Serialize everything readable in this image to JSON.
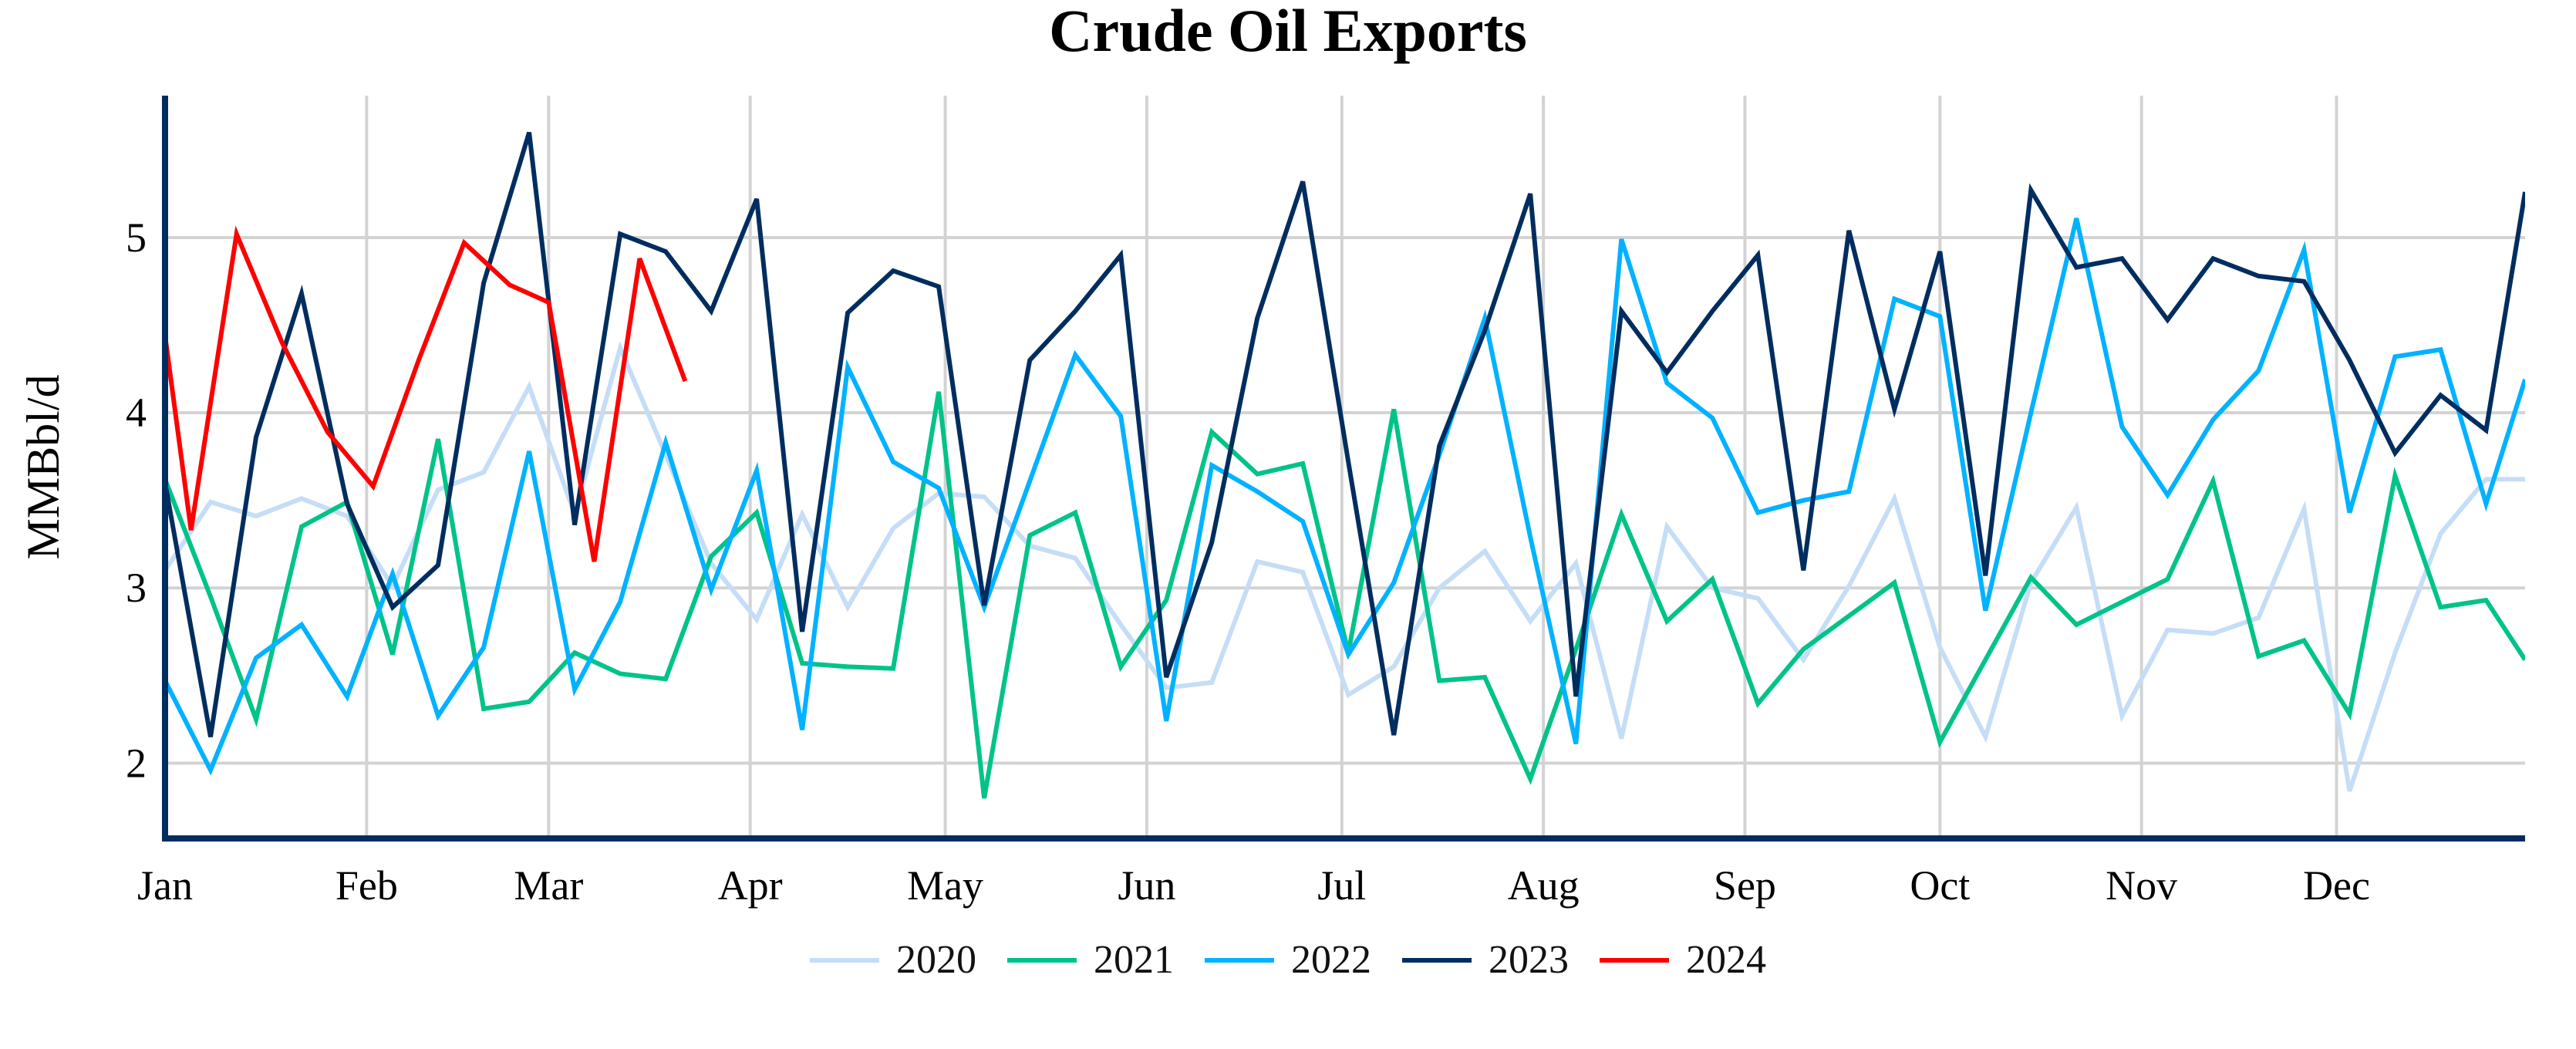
{
  "chart_data": {
    "type": "line",
    "title": "Crude Oil Exports",
    "xlabel": "",
    "ylabel": "MMBbl/d",
    "ylim": [
      1.57,
      5.81
    ],
    "xlim": [
      "01-01",
      "12-30"
    ],
    "yticks": [
      2,
      3,
      4,
      5
    ],
    "xticks": [
      {
        "label": "Jan",
        "date": "01-01"
      },
      {
        "label": "Feb",
        "date": "02-01"
      },
      {
        "label": "Mar",
        "date": "03-01"
      },
      {
        "label": "Apr",
        "date": "04-01"
      },
      {
        "label": "May",
        "date": "05-01"
      },
      {
        "label": "Jun",
        "date": "06-01"
      },
      {
        "label": "Jul",
        "date": "07-01"
      },
      {
        "label": "Aug",
        "date": "08-01"
      },
      {
        "label": "Sep",
        "date": "09-01"
      },
      {
        "label": "Oct",
        "date": "10-01"
      },
      {
        "label": "Nov",
        "date": "11-01"
      },
      {
        "label": "Dec",
        "date": "12-01"
      }
    ],
    "grid": true,
    "legend_position": "bottom",
    "x": [
      "01-01",
      "01-08",
      "01-15",
      "01-22",
      "01-29",
      "02-05",
      "02-12",
      "02-19",
      "02-26",
      "03-05",
      "03-12",
      "03-19",
      "03-26",
      "04-02",
      "04-09",
      "04-16",
      "04-23",
      "04-30",
      "05-07",
      "05-14",
      "05-21",
      "05-28",
      "06-04",
      "06-11",
      "06-18",
      "06-25",
      "07-02",
      "07-09",
      "07-16",
      "07-23",
      "07-30",
      "08-06",
      "08-13",
      "08-20",
      "08-27",
      "09-03",
      "09-10",
      "09-17",
      "09-24",
      "10-01",
      "10-08",
      "10-15",
      "10-22",
      "10-29",
      "11-05",
      "11-12",
      "11-19",
      "11-26",
      "12-03",
      "12-10",
      "12-17",
      "12-24",
      "12-30"
    ],
    "series": [
      {
        "name": "2020",
        "color": "#c5ddf7",
        "values": [
          3.1,
          3.49,
          3.41,
          3.51,
          3.41,
          3.01,
          3.56,
          3.66,
          4.15,
          3.42,
          4.37,
          3.76,
          3.14,
          2.82,
          3.42,
          2.89,
          3.34,
          3.54,
          3.52,
          3.24,
          3.17,
          2.79,
          2.43,
          2.46,
          3.15,
          3.09,
          2.39,
          2.55,
          3.0,
          3.21,
          2.81,
          3.14,
          2.14,
          3.35,
          3.0,
          2.94,
          2.59,
          3.01,
          3.51,
          2.66,
          2.15,
          3.03,
          3.46,
          2.27,
          2.76,
          2.74,
          2.83,
          3.45,
          1.84,
          2.63,
          3.31,
          3.62,
          3.62
        ]
      },
      {
        "name": "2021",
        "color": "#00c389",
        "values": [
          3.62,
          2.95,
          2.25,
          3.35,
          3.49,
          2.62,
          3.85,
          2.31,
          2.35,
          2.63,
          2.51,
          2.48,
          3.18,
          3.43,
          2.57,
          2.55,
          2.54,
          4.12,
          1.8,
          3.3,
          3.43,
          2.55,
          2.93,
          3.89,
          3.65,
          3.71,
          2.63,
          4.02,
          2.47,
          2.49,
          1.91,
          2.65,
          3.42,
          2.81,
          3.05,
          2.34,
          2.65,
          2.84,
          3.03,
          2.12,
          2.59,
          3.06,
          2.79,
          2.92,
          3.05,
          3.61,
          2.61,
          2.7,
          2.28,
          3.64,
          2.89,
          2.93,
          2.59
        ]
      },
      {
        "name": "2022",
        "color": "#00b2ff",
        "values": [
          2.47,
          1.96,
          2.6,
          2.79,
          2.38,
          3.08,
          2.27,
          2.66,
          3.78,
          2.42,
          2.92,
          3.83,
          2.99,
          3.67,
          2.19,
          4.26,
          3.72,
          3.57,
          2.89,
          3.61,
          4.33,
          3.98,
          2.24,
          3.7,
          3.55,
          3.38,
          2.62,
          3.03,
          3.76,
          4.54,
          3.29,
          2.11,
          4.99,
          4.17,
          3.97,
          3.43,
          3.5,
          3.55,
          4.65,
          4.55,
          2.87,
          4.0,
          5.11,
          3.92,
          3.53,
          3.96,
          4.24,
          4.93,
          3.43,
          4.32,
          4.36,
          3.48,
          4.19
        ]
      },
      {
        "name": "2023",
        "color": "#002d5f",
        "values": [
          3.6,
          2.15,
          3.86,
          4.68,
          3.48,
          2.89,
          3.13,
          4.74,
          5.6,
          3.36,
          5.02,
          4.92,
          4.58,
          5.22,
          2.75,
          4.57,
          4.81,
          4.72,
          2.9,
          4.3,
          4.58,
          4.9,
          2.49,
          3.26,
          4.54,
          5.32,
          3.72,
          2.16,
          3.81,
          4.47,
          5.25,
          2.38,
          4.58,
          4.23,
          4.58,
          4.9,
          3.1,
          5.04,
          4.02,
          4.92,
          3.07,
          5.27,
          4.83,
          4.88,
          4.53,
          4.88,
          4.78,
          4.75,
          4.3,
          3.77,
          4.1,
          3.9,
          5.26
        ]
      },
      {
        "name": "2024",
        "color": "#ff0000",
        "x": [
          "01-01",
          "01-05",
          "01-12",
          "01-19",
          "01-26",
          "02-02",
          "02-09",
          "02-16",
          "02-23",
          "03-01",
          "03-08",
          "03-15",
          "03-22"
        ],
        "values": [
          4.44,
          3.33,
          5.02,
          4.4,
          3.89,
          3.58,
          4.3,
          4.97,
          4.73,
          4.63,
          3.15,
          4.88,
          4.18
        ]
      }
    ]
  },
  "colors": {
    "axis": "#002d5f",
    "grid": "#d3d3d3"
  }
}
